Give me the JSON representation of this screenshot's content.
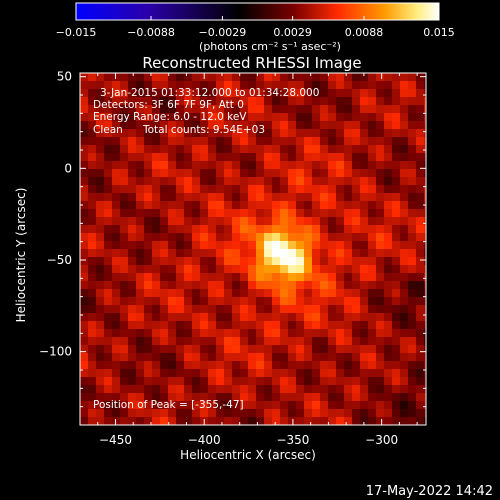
{
  "chart_data": {
    "type": "heatmap",
    "title": "Reconstructed RHESSI Image",
    "xlabel": "Heliocentric X (arcsec)",
    "ylabel": "Heliocentric Y (arcsec)",
    "xlim": [
      -470,
      -275
    ],
    "ylim": [
      -140,
      52
    ],
    "x_ticks": [
      -450,
      -400,
      -350,
      -300
    ],
    "x_tick_labels": [
      "−450",
      "−400",
      "−350",
      "−300"
    ],
    "y_ticks": [
      50,
      0,
      -50,
      -100
    ],
    "y_tick_labels": [
      "50",
      "0",
      "−50",
      "−100"
    ],
    "colorbar": {
      "range": [
        -0.015,
        0.015
      ],
      "ticks": [
        -0.015,
        -0.0088,
        -0.0029,
        0.0029,
        0.0088,
        0.015
      ],
      "tick_labels": [
        "−0.015",
        "−0.0088",
        "−0.0029",
        "0.0029",
        "0.0088",
        "0.015"
      ],
      "unit_label": "(photons cm⁻² s⁻¹ asec⁻²)",
      "colors": [
        "#0000ff",
        "#2a00a8",
        "#000000",
        "#7a0000",
        "#ff2a00",
        "#ff9a00",
        "#ffee80",
        "#ffffff"
      ]
    },
    "annotations": {
      "time_range": "3-Jan-2015 01:33:12.000 to 01:34:28.000",
      "detectors": "Detectors: 3F 6F 7F 9F, Att 0",
      "energy": "Energy Range: 6.0 - 12.0 keV",
      "method": "Clean",
      "counts": "Total counts: 9.54E+03",
      "peak": "Position of Peak = [-355,-47]"
    },
    "peak": {
      "x": -355,
      "y": -47
    },
    "grid": false
  },
  "footer": {
    "timestamp": "17-May-2022 14:42"
  }
}
